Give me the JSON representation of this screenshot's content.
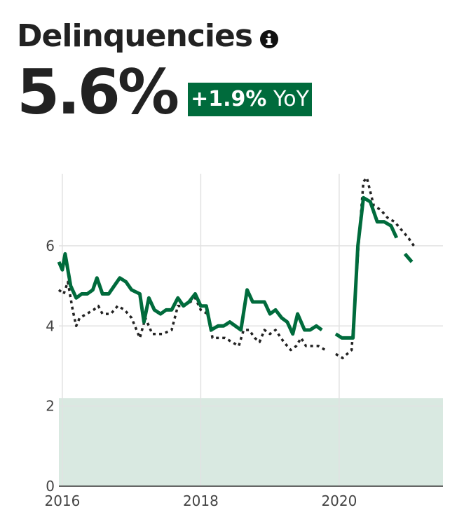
{
  "header": {
    "title": "Delinquencies",
    "info_icon": "info-icon",
    "metric_value": "5.6%",
    "badge_delta": "+1.9%",
    "badge_suffix": "YoY"
  },
  "colors": {
    "primary_series": "#006b3c",
    "comparison_series": "#222222",
    "shaded_band": "#d9e9e1",
    "badge_bg": "#006b3c"
  },
  "chart_data": {
    "type": "line",
    "title": "",
    "xlabel": "",
    "ylabel": "",
    "xlim": [
      2015.95,
      2021.5
    ],
    "ylim": [
      0,
      7.8
    ],
    "yticks": [
      0,
      2,
      4,
      6
    ],
    "xticks": [
      2016,
      2018,
      2020
    ],
    "grid": true,
    "shaded_band": {
      "y0": 0,
      "y1": 2.2
    },
    "series": [
      {
        "style": "solid",
        "color": "#006b3c",
        "segments": [
          [
            [
              2015.95,
              5.6
            ],
            [
              2016.0,
              5.4
            ],
            [
              2016.04,
              5.8
            ],
            [
              2016.12,
              5.0
            ],
            [
              2016.2,
              4.7
            ],
            [
              2016.28,
              4.8
            ],
            [
              2016.36,
              4.8
            ],
            [
              2016.44,
              4.9
            ],
            [
              2016.5,
              5.2
            ],
            [
              2016.58,
              4.8
            ],
            [
              2016.67,
              4.8
            ],
            [
              2016.75,
              5.0
            ],
            [
              2016.83,
              5.2
            ],
            [
              2016.92,
              5.1
            ],
            [
              2017.0,
              4.9
            ],
            [
              2017.12,
              4.8
            ],
            [
              2017.18,
              4.1
            ],
            [
              2017.25,
              4.7
            ],
            [
              2017.33,
              4.4
            ],
            [
              2017.42,
              4.3
            ],
            [
              2017.5,
              4.4
            ],
            [
              2017.58,
              4.4
            ],
            [
              2017.67,
              4.7
            ],
            [
              2017.75,
              4.5
            ],
            [
              2017.83,
              4.6
            ],
            [
              2017.92,
              4.8
            ],
            [
              2018.0,
              4.5
            ],
            [
              2018.08,
              4.5
            ],
            [
              2018.15,
              3.9
            ],
            [
              2018.25,
              4.0
            ],
            [
              2018.33,
              4.0
            ],
            [
              2018.42,
              4.1
            ],
            [
              2018.5,
              4.0
            ],
            [
              2018.58,
              3.9
            ],
            [
              2018.67,
              4.9
            ],
            [
              2018.75,
              4.6
            ],
            [
              2018.83,
              4.6
            ],
            [
              2018.92,
              4.6
            ],
            [
              2019.0,
              4.3
            ],
            [
              2019.08,
              4.4
            ],
            [
              2019.17,
              4.2
            ],
            [
              2019.25,
              4.1
            ],
            [
              2019.33,
              3.8
            ],
            [
              2019.4,
              4.3
            ],
            [
              2019.5,
              3.9
            ],
            [
              2019.58,
              3.9
            ],
            [
              2019.67,
              4.0
            ],
            [
              2019.75,
              3.9
            ]
          ],
          [
            [
              2019.95,
              3.8
            ],
            [
              2020.04,
              3.7
            ],
            [
              2020.12,
              3.7
            ],
            [
              2020.2,
              3.7
            ],
            [
              2020.27,
              6.0
            ],
            [
              2020.35,
              7.2
            ],
            [
              2020.45,
              7.1
            ],
            [
              2020.55,
              6.6
            ],
            [
              2020.65,
              6.6
            ],
            [
              2020.75,
              6.5
            ],
            [
              2020.83,
              6.2
            ]
          ],
          [
            [
              2020.95,
              5.8
            ],
            [
              2021.05,
              5.6
            ]
          ]
        ]
      },
      {
        "style": "dotted",
        "color": "#222222",
        "segments": [
          [
            [
              2015.95,
              4.9
            ],
            [
              2016.02,
              4.8
            ],
            [
              2016.08,
              5.1
            ],
            [
              2016.15,
              4.4
            ],
            [
              2016.2,
              4.0
            ],
            [
              2016.25,
              4.2
            ],
            [
              2016.35,
              4.3
            ],
            [
              2016.45,
              4.4
            ],
            [
              2016.52,
              4.5
            ],
            [
              2016.58,
              4.3
            ],
            [
              2016.7,
              4.3
            ],
            [
              2016.8,
              4.5
            ],
            [
              2016.9,
              4.4
            ],
            [
              2017.0,
              4.2
            ],
            [
              2017.12,
              3.7
            ],
            [
              2017.2,
              4.2
            ],
            [
              2017.3,
              3.8
            ],
            [
              2017.45,
              3.8
            ],
            [
              2017.58,
              3.9
            ],
            [
              2017.67,
              4.5
            ],
            [
              2017.75,
              4.5
            ],
            [
              2017.85,
              4.6
            ],
            [
              2017.92,
              4.7
            ],
            [
              2018.0,
              4.4
            ],
            [
              2018.1,
              4.3
            ],
            [
              2018.17,
              3.7
            ],
            [
              2018.25,
              3.7
            ],
            [
              2018.35,
              3.7
            ],
            [
              2018.45,
              3.6
            ],
            [
              2018.55,
              3.5
            ],
            [
              2018.62,
              3.9
            ],
            [
              2018.7,
              3.9
            ],
            [
              2018.78,
              3.7
            ],
            [
              2018.85,
              3.6
            ],
            [
              2018.92,
              3.9
            ],
            [
              2019.0,
              3.8
            ],
            [
              2019.08,
              3.9
            ],
            [
              2019.2,
              3.6
            ],
            [
              2019.3,
              3.4
            ],
            [
              2019.38,
              3.5
            ],
            [
              2019.45,
              3.7
            ],
            [
              2019.52,
              3.5
            ],
            [
              2019.62,
              3.5
            ],
            [
              2019.7,
              3.5
            ],
            [
              2019.8,
              3.4
            ]
          ],
          [
            [
              2019.95,
              3.3
            ],
            [
              2020.05,
              3.2
            ],
            [
              2020.18,
              3.4
            ],
            [
              2020.28,
              6.0
            ],
            [
              2020.35,
              7.6
            ],
            [
              2020.4,
              7.7
            ],
            [
              2020.5,
              7.0
            ],
            [
              2020.6,
              6.9
            ],
            [
              2020.7,
              6.7
            ],
            [
              2020.8,
              6.6
            ],
            [
              2020.9,
              6.4
            ],
            [
              2021.0,
              6.2
            ],
            [
              2021.08,
              6.0
            ]
          ]
        ]
      }
    ]
  }
}
